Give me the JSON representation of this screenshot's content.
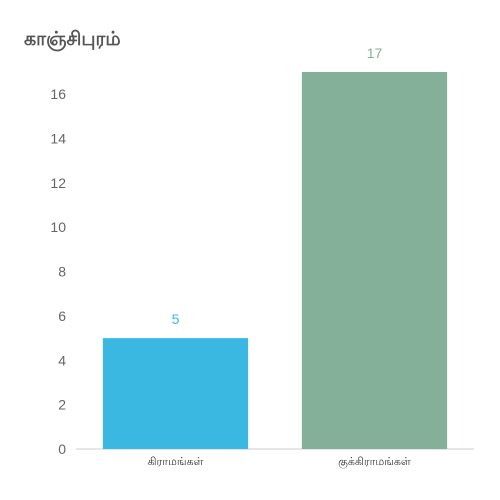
{
  "chart_data": {
    "type": "bar",
    "title": "காஞ்சிபுரம்",
    "categories": [
      "கிராமங்கள்",
      "குக்கிராமங்கள்"
    ],
    "values": [
      5,
      17
    ],
    "colors": [
      "#3bb8e1",
      "#84af99"
    ],
    "yticks": [
      0,
      2,
      4,
      6,
      8,
      10,
      12,
      14,
      16
    ],
    "ylim": [
      0,
      17
    ],
    "xlabel": "",
    "ylabel": "",
    "grid": false,
    "data_labels": true
  }
}
